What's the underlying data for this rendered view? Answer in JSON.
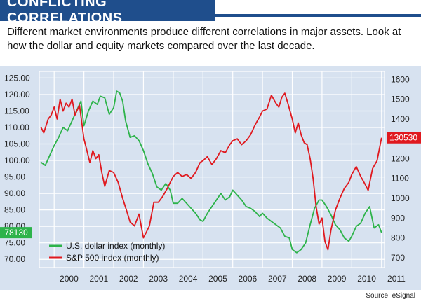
{
  "header": {
    "title": "CONFLICTING CORRELATIONS",
    "subtitle": "Different market environments produce different correlations in major assets. Look at how the dollar and equity markets compared over the last decade."
  },
  "source": "Source: eSignal",
  "colors": {
    "brand_blue": "#1f4e8c",
    "panel_bg": "#d7e2f0",
    "dollar_line": "#2db34a",
    "sp500_line": "#e0191f",
    "grid": "#ffffff"
  },
  "chart_data": {
    "type": "line",
    "x_ticks": [
      "2000",
      "2001",
      "2002",
      "2003",
      "2004",
      "2005",
      "2006",
      "2007",
      "2008",
      "2009",
      "2010",
      "2011"
    ],
    "x_tick_values": [
      2000,
      2001,
      2002,
      2003,
      2004,
      2005,
      2006,
      2007,
      2008,
      2009,
      2010,
      2011
    ],
    "xlim": [
      1999.5,
      2011.1
    ],
    "y_left": {
      "ticks": [
        "70.00",
        "75.00",
        "80.00",
        "85.00",
        "90.00",
        "95.00",
        "100.00",
        "105.00",
        "110.00",
        "115.00",
        "120.00",
        "125.00"
      ],
      "lim": [
        67.5,
        127
      ]
    },
    "y_right": {
      "ticks": [
        "700",
        "800",
        "900",
        "1000",
        "1100",
        "1200",
        "1300",
        "1400",
        "1500",
        "1600"
      ],
      "lim": [
        650,
        1640
      ]
    },
    "grid": true,
    "legend_position": "bottom-left",
    "last_value_labels": {
      "dollar": "78130",
      "sp500": "130530"
    },
    "series": [
      {
        "name": "U.S. dollar index (monthly)",
        "axis": "left",
        "color": "#2db34a",
        "x": [
          1999.55,
          1999.7,
          1999.85,
          2000.0,
          2000.15,
          2000.3,
          2000.45,
          2000.6,
          2000.75,
          2000.9,
          2001.0,
          2001.15,
          2001.3,
          2001.45,
          2001.55,
          2001.7,
          2001.85,
          2002.0,
          2002.1,
          2002.2,
          2002.3,
          2002.4,
          2002.55,
          2002.7,
          2002.85,
          2003.0,
          2003.15,
          2003.3,
          2003.45,
          2003.6,
          2003.75,
          2003.9,
          2004.0,
          2004.15,
          2004.3,
          2004.45,
          2004.6,
          2004.75,
          2004.9,
          2005.0,
          2005.15,
          2005.3,
          2005.45,
          2005.6,
          2005.75,
          2005.9,
          2006.0,
          2006.15,
          2006.3,
          2006.45,
          2006.6,
          2006.75,
          2006.9,
          2007.0,
          2007.15,
          2007.3,
          2007.45,
          2007.6,
          2007.75,
          2007.9,
          2008.0,
          2008.15,
          2008.3,
          2008.45,
          2008.6,
          2008.75,
          2008.9,
          2009.0,
          2009.15,
          2009.3,
          2009.45,
          2009.6,
          2009.75,
          2009.9,
          2010.0,
          2010.15,
          2010.3,
          2010.45,
          2010.6,
          2010.75,
          2010.9,
          2011.0
        ],
        "values": [
          99.5,
          98.5,
          101.5,
          104.5,
          107,
          110,
          109,
          112,
          115,
          118,
          110.5,
          115,
          118,
          117,
          119.5,
          119,
          114,
          116,
          121,
          120.5,
          118,
          112,
          107,
          107.5,
          106,
          103,
          99,
          96,
          92,
          91,
          93,
          91,
          87,
          87,
          88.5,
          87,
          85.5,
          84,
          82,
          81.5,
          84,
          86,
          88,
          90,
          88,
          89,
          91,
          89.5,
          88,
          86,
          85.5,
          84.5,
          83,
          84,
          82.5,
          81.5,
          80.5,
          79.5,
          77,
          76.5,
          73,
          72,
          73,
          75,
          80.5,
          85.5,
          88,
          88,
          86,
          83.5,
          80.5,
          79,
          76.5,
          75.5,
          77,
          80,
          81,
          84,
          86,
          79.5,
          80.5,
          78.1
        ]
      },
      {
        "name": "S&P 500 index (monthly)",
        "axis": "right",
        "color": "#e0191f",
        "x": [
          1999.55,
          1999.65,
          1999.8,
          1999.9,
          2000.0,
          2000.1,
          2000.2,
          2000.3,
          2000.4,
          2000.5,
          2000.6,
          2000.7,
          2000.85,
          2001.0,
          2001.1,
          2001.2,
          2001.3,
          2001.4,
          2001.5,
          2001.6,
          2001.7,
          2001.85,
          2002.0,
          2002.15,
          2002.3,
          2002.45,
          2002.55,
          2002.7,
          2002.85,
          2003.0,
          2003.1,
          2003.2,
          2003.35,
          2003.5,
          2003.65,
          2003.8,
          2004.0,
          2004.15,
          2004.3,
          2004.45,
          2004.6,
          2004.75,
          2004.9,
          2005.0,
          2005.15,
          2005.3,
          2005.45,
          2005.6,
          2005.75,
          2005.9,
          2006.0,
          2006.15,
          2006.3,
          2006.45,
          2006.6,
          2006.75,
          2006.9,
          2007.0,
          2007.15,
          2007.3,
          2007.45,
          2007.55,
          2007.65,
          2007.75,
          2007.85,
          2008.0,
          2008.1,
          2008.2,
          2008.3,
          2008.4,
          2008.5,
          2008.6,
          2008.7,
          2008.8,
          2008.9,
          2009.0,
          2009.1,
          2009.2,
          2009.3,
          2009.45,
          2009.6,
          2009.75,
          2009.9,
          2010.0,
          2010.15,
          2010.3,
          2010.45,
          2010.55,
          2010.7,
          2010.85,
          2011.0
        ],
        "values": [
          1360,
          1330,
          1400,
          1420,
          1460,
          1400,
          1500,
          1440,
          1480,
          1460,
          1500,
          1420,
          1470,
          1300,
          1240,
          1180,
          1240,
          1200,
          1220,
          1130,
          1060,
          1140,
          1130,
          1080,
          1000,
          930,
          880,
          860,
          920,
          800,
          830,
          860,
          980,
          980,
          1010,
          1050,
          1110,
          1130,
          1110,
          1120,
          1100,
          1130,
          1180,
          1190,
          1210,
          1170,
          1200,
          1240,
          1230,
          1270,
          1290,
          1300,
          1270,
          1290,
          1320,
          1370,
          1410,
          1440,
          1450,
          1520,
          1480,
          1460,
          1510,
          1530,
          1480,
          1400,
          1330,
          1380,
          1320,
          1280,
          1270,
          1200,
          1100,
          960,
          870,
          900,
          780,
          740,
          840,
          940,
          1000,
          1050,
          1080,
          1120,
          1160,
          1110,
          1070,
          1040,
          1150,
          1190,
          1305
        ]
      }
    ]
  }
}
